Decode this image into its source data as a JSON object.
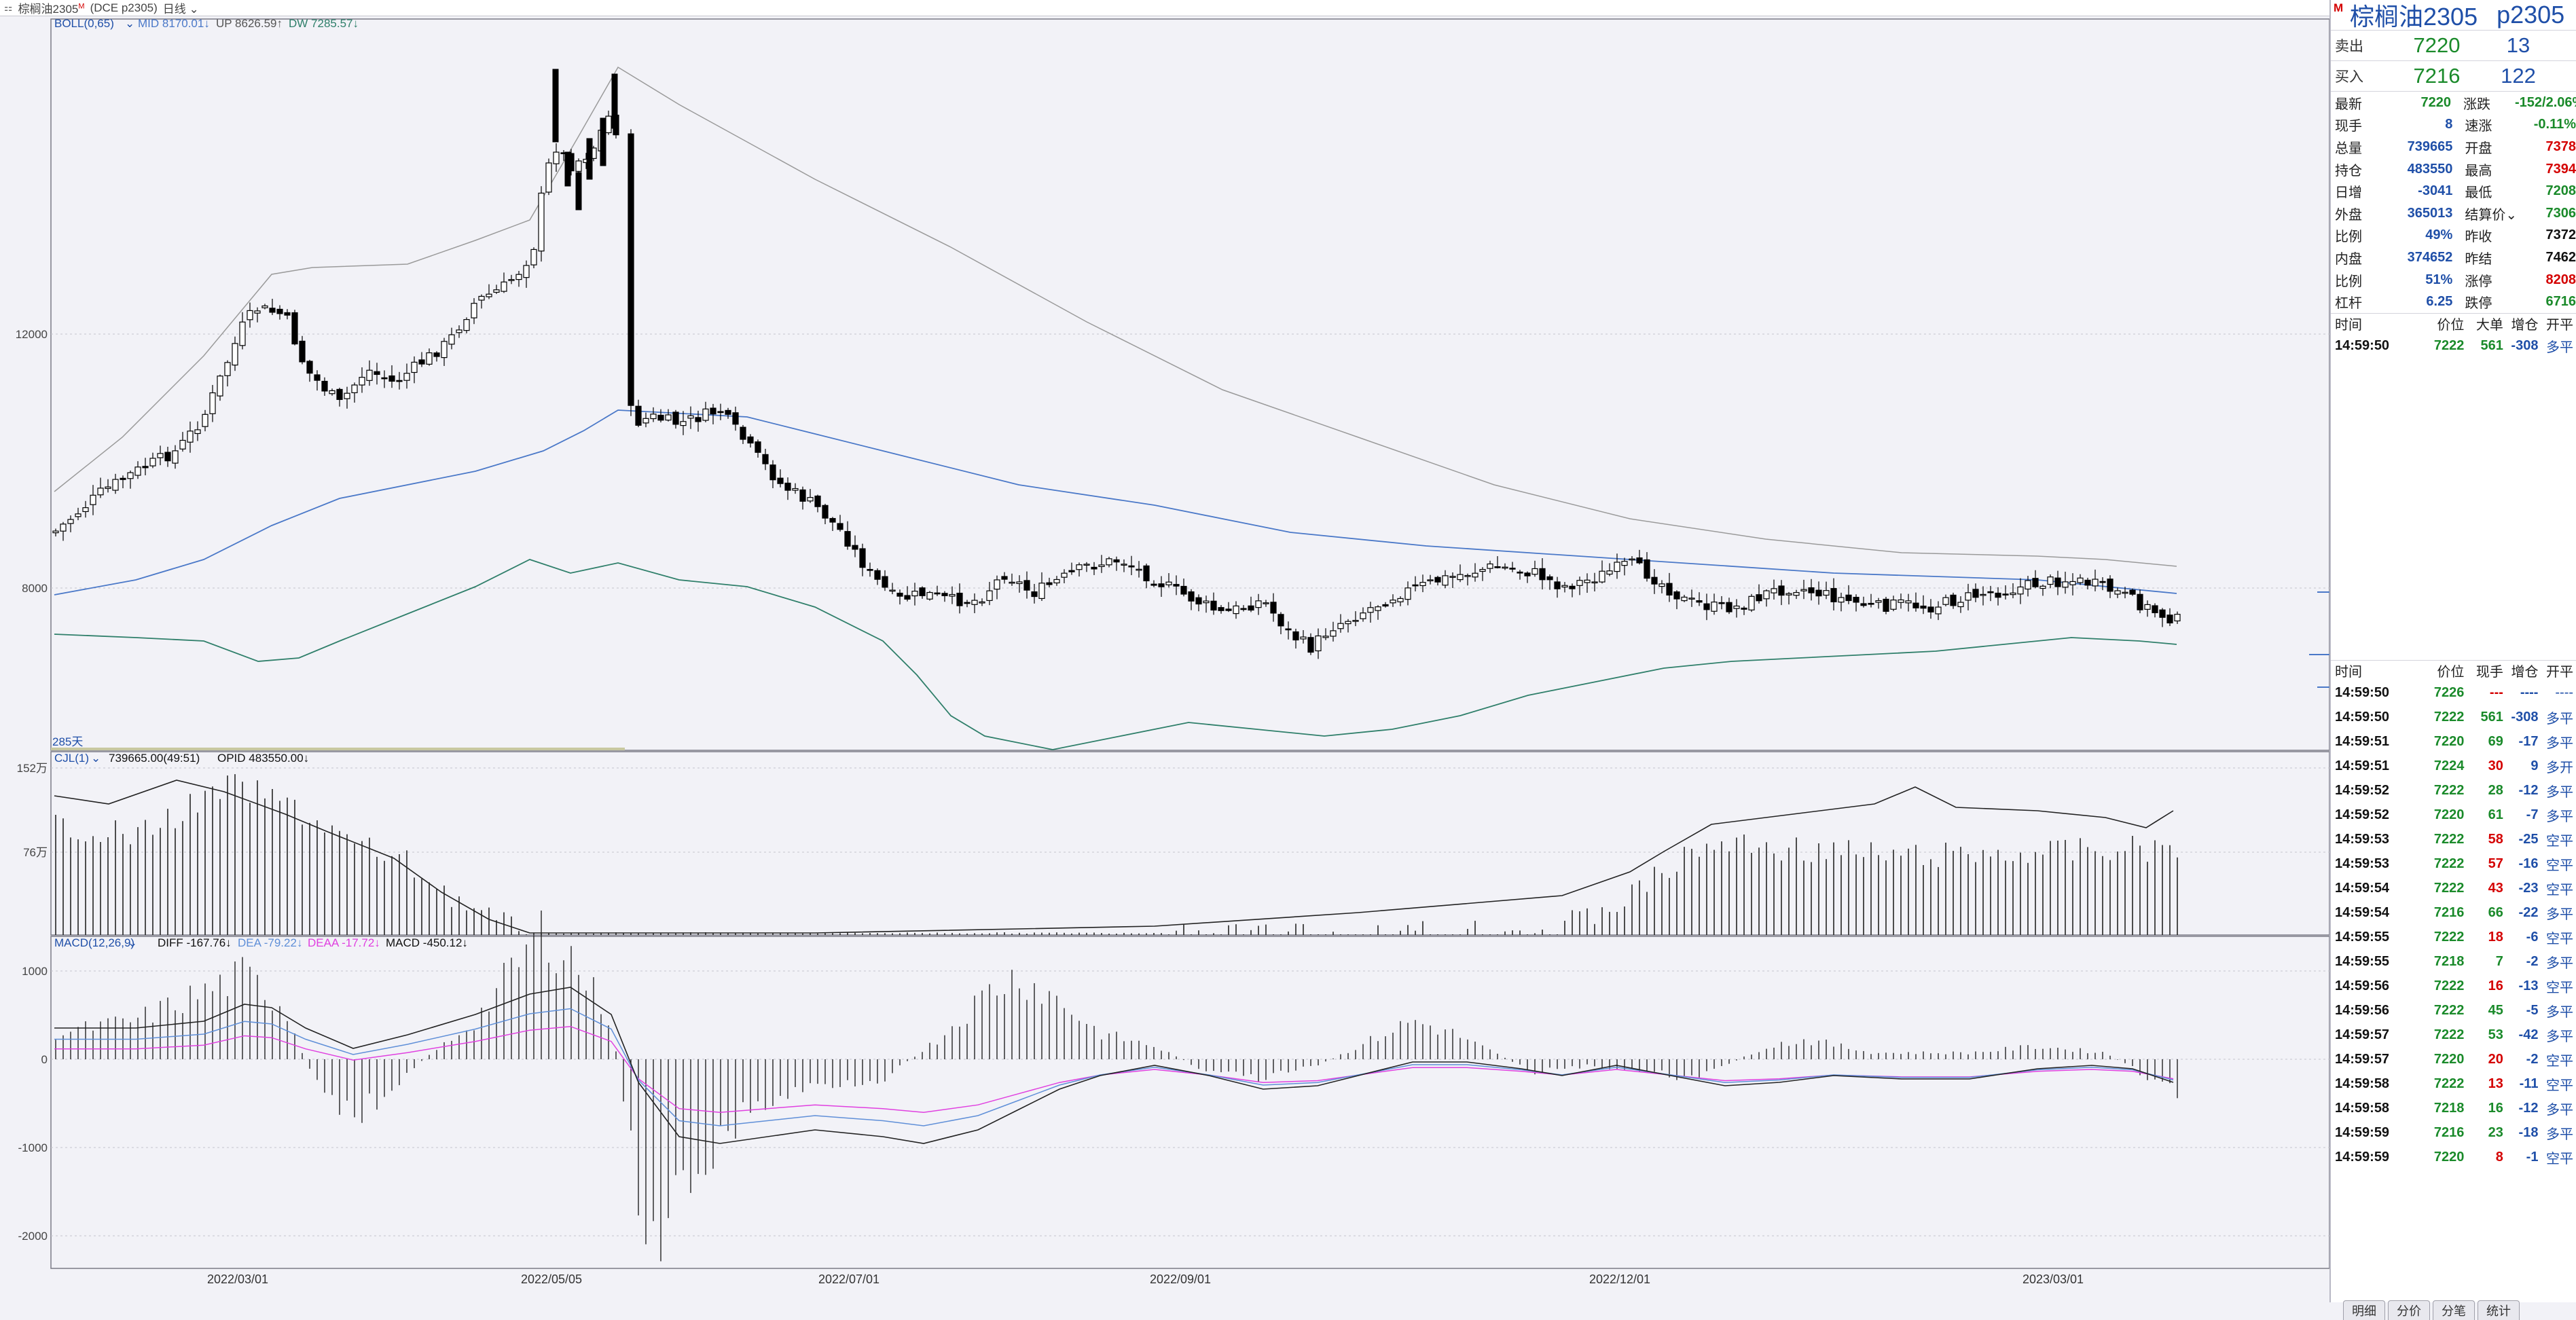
{
  "topbar": {
    "icon": "chart-window-icon",
    "symbol_label": "棕榈油2305",
    "symbol_sup": "M",
    "exchange_label": "(DCE  p2305)",
    "period_label": "日线"
  },
  "main": {
    "indicator_name": "BOLL(0,65)",
    "mid_label": "MID 8170.01↓",
    "up_label": "UP 8626.59↑",
    "dw_label": "DW 7285.57↓",
    "y_labels": [
      "12000",
      "8000"
    ],
    "bar_count_label": "285天"
  },
  "volume_panel": {
    "indicator_name": "CJL(1)",
    "values_label": "739665.00(49:51)",
    "opid_label": "OPID 483550.00↓",
    "y_labels": [
      "152万",
      "76万"
    ]
  },
  "macd_panel": {
    "indicator_name": "MACD(12,26,9)",
    "diff_label": "DIFF -167.76↓",
    "dea_label": "DEA -79.22↓",
    "deaa_label": "DEAA -17.72↓",
    "macd_label": "MACD -450.12↓",
    "y_labels": [
      "1000",
      "0",
      "-1000",
      "-2000"
    ]
  },
  "x_labels": [
    "2022/03/01",
    "2022/05/05",
    "2022/07/01",
    "2022/09/01",
    "2022/12/01",
    "2023/03/01"
  ],
  "colors": {
    "up_line": "#9a9a9a",
    "mid_line": "#4a78c8",
    "dw_line": "#2f7f6a",
    "dea": "#5f8fd8",
    "deaa": "#e040e0",
    "down": "#1a8a2a",
    "up": "#d40000"
  },
  "quote": {
    "marker": "M",
    "name": "棕榈油2305",
    "code": "p2305",
    "sell": {
      "label": "卖出",
      "price": "7220",
      "vol": "13"
    },
    "buy": {
      "label": "买入",
      "price": "7216",
      "vol": "122"
    },
    "stats": [
      {
        "k": "最新",
        "v": "7220",
        "vc": "green",
        "k2": "涨跌",
        "v2": "-152/2.06%",
        "v2c": "green"
      },
      {
        "k": "现手",
        "v": "8",
        "vc": "blue",
        "k2": "速涨",
        "v2": "-0.11%",
        "v2c": "green"
      },
      {
        "k": "总量",
        "v": "739665",
        "vc": "blue",
        "k2": "开盘",
        "v2": "7378",
        "v2c": "red"
      },
      {
        "k": "持仓",
        "v": "483550",
        "vc": "blue",
        "k2": "最高",
        "v2": "7394",
        "v2c": "red"
      },
      {
        "k": "日增",
        "v": "-3041",
        "vc": "blue",
        "k2": "最低",
        "v2": "7208",
        "v2c": "green"
      },
      {
        "k": "外盘",
        "v": "365013",
        "vc": "blue",
        "k2": "结算价⌄",
        "v2": "7306",
        "v2c": "green"
      },
      {
        "k": "比例",
        "v": "49%",
        "vc": "blue",
        "k2": "昨收",
        "v2": "7372",
        "v2c": "black"
      },
      {
        "k": "内盘",
        "v": "374652",
        "vc": "blue",
        "k2": "昨结",
        "v2": "7462",
        "v2c": "black"
      },
      {
        "k": "比例",
        "v": "51%",
        "vc": "blue",
        "k2": "涨停",
        "v2": "8208",
        "v2c": "red"
      },
      {
        "k": "杠杆",
        "v": "6.25",
        "vc": "blue",
        "k2": "跌停",
        "v2": "6716",
        "v2c": "green"
      }
    ],
    "big_header": [
      "时间",
      "价位",
      "大单",
      "增仓",
      "开平"
    ],
    "big_rows": [
      {
        "time": "14:59:50",
        "price": "7222",
        "pc": "green",
        "vol": "561",
        "vc": "green",
        "chg": "-308",
        "type": "多平"
      }
    ],
    "tick_header": [
      "时间",
      "价位",
      "现手",
      "增仓",
      "开平"
    ],
    "tick_rows": [
      {
        "time": "14:59:50",
        "price": "7226",
        "pc": "green",
        "vol": "---",
        "vc": "red",
        "chg": "----",
        "type": "----"
      },
      {
        "time": "14:59:50",
        "price": "7222",
        "pc": "green",
        "vol": "561",
        "vc": "green",
        "chg": "-308",
        "type": "多平"
      },
      {
        "time": "14:59:51",
        "price": "7220",
        "pc": "green",
        "vol": "69",
        "vc": "green",
        "chg": "-17",
        "type": "多平"
      },
      {
        "time": "14:59:51",
        "price": "7224",
        "pc": "green",
        "vol": "30",
        "vc": "red",
        "chg": "9",
        "type": "多开"
      },
      {
        "time": "14:59:52",
        "price": "7222",
        "pc": "green",
        "vol": "28",
        "vc": "green",
        "chg": "-12",
        "type": "多平"
      },
      {
        "time": "14:59:52",
        "price": "7220",
        "pc": "green",
        "vol": "61",
        "vc": "green",
        "chg": "-7",
        "type": "多平"
      },
      {
        "time": "14:59:53",
        "price": "7222",
        "pc": "green",
        "vol": "58",
        "vc": "red",
        "chg": "-25",
        "type": "空平"
      },
      {
        "time": "14:59:53",
        "price": "7222",
        "pc": "green",
        "vol": "57",
        "vc": "red",
        "chg": "-16",
        "type": "空平"
      },
      {
        "time": "14:59:54",
        "price": "7222",
        "pc": "green",
        "vol": "43",
        "vc": "red",
        "chg": "-23",
        "type": "空平"
      },
      {
        "time": "14:59:54",
        "price": "7216",
        "pc": "green",
        "vol": "66",
        "vc": "green",
        "chg": "-22",
        "type": "多平"
      },
      {
        "time": "14:59:55",
        "price": "7222",
        "pc": "green",
        "vol": "18",
        "vc": "red",
        "chg": "-6",
        "type": "空平"
      },
      {
        "time": "14:59:55",
        "price": "7218",
        "pc": "green",
        "vol": "7",
        "vc": "green",
        "chg": "-2",
        "type": "多平"
      },
      {
        "time": "14:59:56",
        "price": "7222",
        "pc": "green",
        "vol": "16",
        "vc": "red",
        "chg": "-13",
        "type": "空平"
      },
      {
        "time": "14:59:56",
        "price": "7222",
        "pc": "green",
        "vol": "45",
        "vc": "green",
        "chg": "-5",
        "type": "多平"
      },
      {
        "time": "14:59:57",
        "price": "7222",
        "pc": "green",
        "vol": "53",
        "vc": "green",
        "chg": "-42",
        "type": "多平"
      },
      {
        "time": "14:59:57",
        "price": "7220",
        "pc": "green",
        "vol": "20",
        "vc": "red",
        "chg": "-2",
        "type": "空平"
      },
      {
        "time": "14:59:58",
        "price": "7222",
        "pc": "green",
        "vol": "13",
        "vc": "red",
        "chg": "-11",
        "type": "空平"
      },
      {
        "time": "14:59:58",
        "price": "7218",
        "pc": "green",
        "vol": "16",
        "vc": "green",
        "chg": "-12",
        "type": "多平"
      },
      {
        "time": "14:59:59",
        "price": "7216",
        "pc": "green",
        "vol": "23",
        "vc": "green",
        "chg": "-18",
        "type": "多平"
      },
      {
        "time": "14:59:59",
        "price": "7220",
        "pc": "green",
        "vol": "8",
        "vc": "red",
        "chg": "-1",
        "type": "空平"
      }
    ]
  },
  "tabs": [
    "明细",
    "分价",
    "分笔",
    "统计"
  ]
}
